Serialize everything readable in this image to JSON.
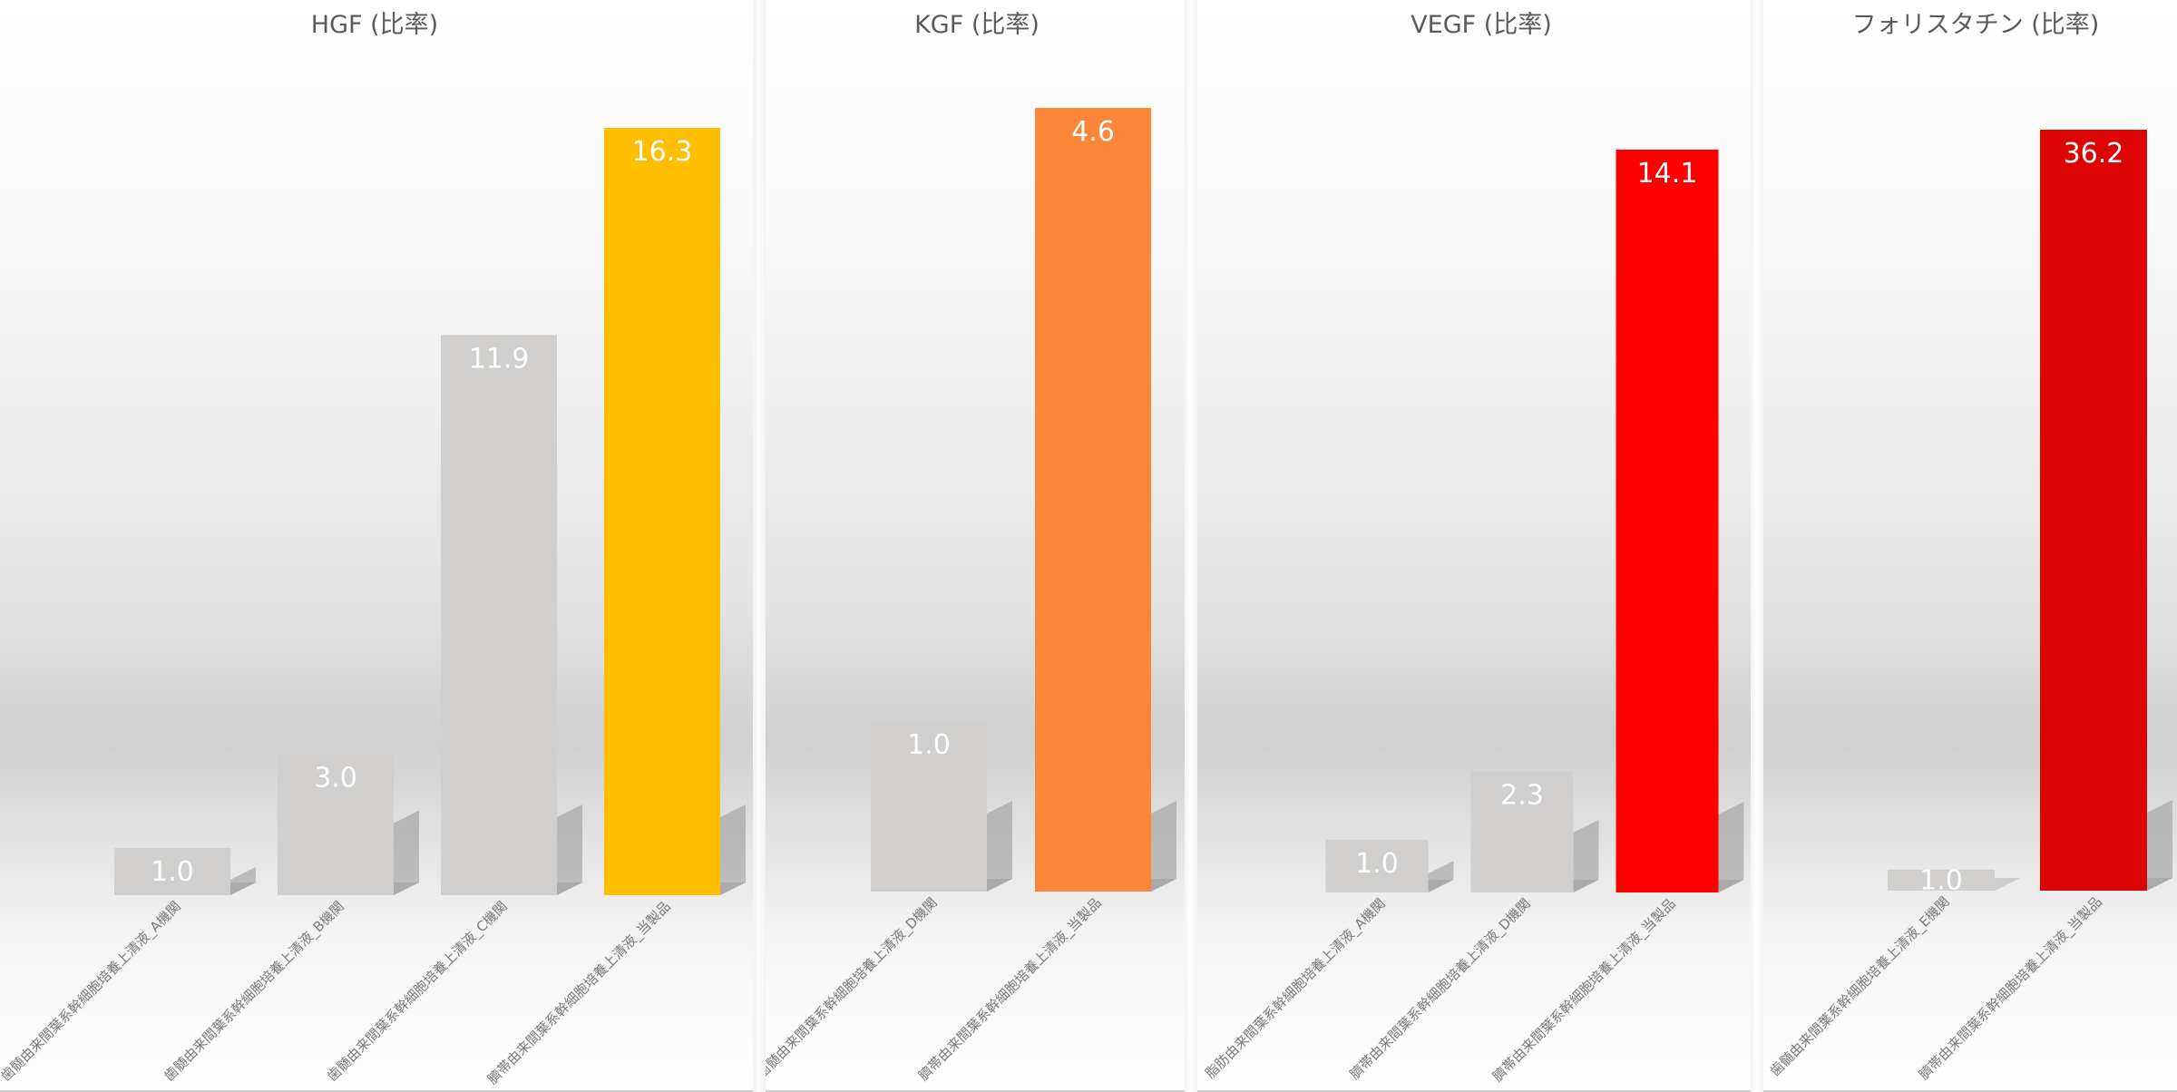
{
  "chart_data": [
    {
      "type": "bar",
      "title": "HGF (比率)",
      "categories": [
        "歯髄由来間葉系幹細胞培養上清液_A機関",
        "歯髄由来間葉系幹細胞培養上清液_B機関",
        "歯髄由来間葉系幹細胞培養上清液_C機関",
        "臍帯由来間葉系幹細胞培養上清液_当製品"
      ],
      "values": [
        1.0,
        3.0,
        11.9,
        16.3
      ],
      "value_labels": [
        "1.0",
        "3.0",
        "11.9",
        "16.3"
      ],
      "colors": [
        "#d0cfce",
        "#d0cfce",
        "#d0cfce",
        "#ffbe00"
      ],
      "ylim": [
        0,
        16.3
      ],
      "grid": false,
      "legend": "none"
    },
    {
      "type": "bar",
      "title": "KGF (比率)",
      "categories": [
        "歯髄由来間葉系幹細胞培養上清液_D機関",
        "臍帯由来間葉系幹細胞培養上清液_当製品"
      ],
      "values": [
        1.0,
        4.6
      ],
      "value_labels": [
        "1.0",
        "4.6"
      ],
      "colors": [
        "#d0cfce",
        "#fa8737"
      ],
      "ylim": [
        0,
        4.6
      ],
      "grid": false,
      "legend": "none"
    },
    {
      "type": "bar",
      "title": "VEGF (比率)",
      "categories": [
        "脂肪由来間葉系幹細胞培養上清液_A機関",
        "臍帯由来間葉系幹細胞培養上清液_D機関",
        "臍帯由来間葉系幹細胞培養上清液_当製品"
      ],
      "values": [
        1.0,
        2.3,
        14.1
      ],
      "value_labels": [
        "1.0",
        "2.3",
        "14.1"
      ],
      "colors": [
        "#d0cfce",
        "#d0cfce",
        "#ff0000"
      ],
      "ylim": [
        0,
        14.1
      ],
      "grid": false,
      "legend": "none"
    },
    {
      "type": "bar",
      "title": "フォリスタチン (比率)",
      "categories": [
        "歯髄由来間葉系幹細胞培養上清液_E機関",
        "臍帯由来間葉系幹細胞培養上清液_当製品"
      ],
      "values": [
        1.0,
        36.2
      ],
      "value_labels": [
        "1.0",
        "36.2"
      ],
      "colors": [
        "#d0cfce",
        "#dd0404"
      ],
      "ylim": [
        0,
        36.2
      ],
      "grid": false,
      "legend": "none"
    }
  ]
}
